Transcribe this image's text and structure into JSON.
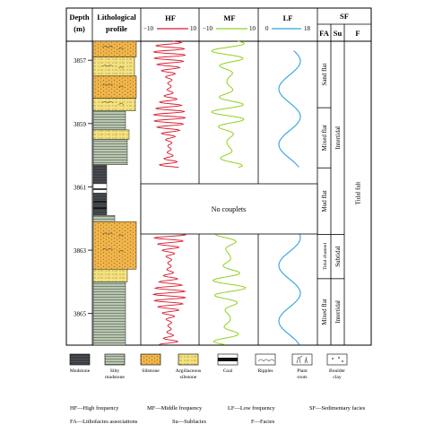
{
  "header": {
    "depth_label_1": "Depth",
    "depth_label_2": "(m)",
    "litho_label_1": "Lithological",
    "litho_label_2": "profile",
    "hf": {
      "name": "HF",
      "min": "−10",
      "max": "10",
      "color": "#d9182d"
    },
    "mf": {
      "name": "MF",
      "min": "−10",
      "max": "10",
      "color": "#8fd21c"
    },
    "lf": {
      "name": "LF",
      "min": "0",
      "max": "18",
      "color": "#2fa3e0"
    },
    "sf": {
      "name": "SF",
      "fa": "FA",
      "su": "Su",
      "f": "F"
    }
  },
  "depths": [
    {
      "label": "3857",
      "value": 3857
    },
    {
      "label": "3859",
      "value": 3859
    },
    {
      "label": "3861",
      "value": 3861
    },
    {
      "label": "3863",
      "value": 3863
    },
    {
      "label": "3865",
      "value": 3865
    }
  ],
  "no_couplets_label": "No couplets",
  "facies": {
    "fa": [
      {
        "label": "Sand flat",
        "top": 3856.4,
        "bottom": 3858.5
      },
      {
        "label": "Mixed flat",
        "top": 3858.5,
        "bottom": 3860.4
      },
      {
        "label": "Mud flat",
        "top": 3860.4,
        "bottom": 3862.5
      },
      {
        "label": "Tidal channel",
        "top": 3862.5,
        "bottom": 3863.9
      },
      {
        "label": "Mixed flat",
        "top": 3863.9,
        "bottom": 3866.0
      }
    ],
    "su": [
      {
        "label": "Intertidal",
        "top": 3856.4,
        "bottom": 3862.5
      },
      {
        "label": "Subtidal",
        "top": 3862.5,
        "bottom": 3863.9
      },
      {
        "label": "Intertidal",
        "top": 3863.9,
        "bottom": 3866.0
      }
    ],
    "f": [
      {
        "label": "Tidal falt",
        "top": 3856.4,
        "bottom": 3866.0
      }
    ]
  },
  "legend": {
    "items": [
      {
        "label": "Mudstone",
        "label2": ""
      },
      {
        "label": "Silty",
        "label2": "mudstone"
      },
      {
        "label": "Siltstone",
        "label2": ""
      },
      {
        "label": "Argillaceous",
        "label2": "siltstone"
      },
      {
        "label": "Coal",
        "label2": ""
      },
      {
        "label": "Ripples",
        "label2": ""
      },
      {
        "label": "Plant",
        "label2": "roots"
      },
      {
        "label": "Boulder",
        "label2": "clay"
      }
    ],
    "notes_row1": [
      "HF—High frequency",
      "MF—Middle frequency",
      "LF—Low frequency",
      "SF—Sedimentary facies"
    ],
    "notes_row2": [
      "FA—Lithofacies associations",
      "Su—Subfacies",
      "F—Facies"
    ]
  }
}
